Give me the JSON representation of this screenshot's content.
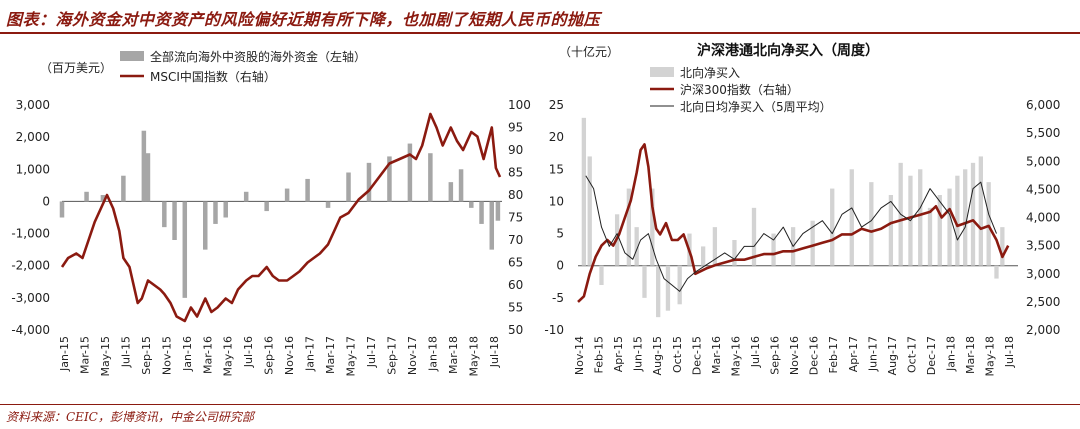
{
  "header": {
    "title": "图表：海外资金对中资资产的风险偏好近期有所下降，也加剧了短期人民币的抛压"
  },
  "footer": {
    "source": "资料来源：CEIC，彭博资讯，中金公司研究部"
  },
  "chart_data": [
    {
      "type": "bar+line",
      "title": "",
      "unit_label": "（百万美元）",
      "legend": [
        "全部流向海外中资股的海外资金（左轴）",
        "MSCI中国指数（右轴）"
      ],
      "x_tick_labels": [
        "Jan-15",
        "Mar-15",
        "May-15",
        "Jul-15",
        "Sep-15",
        "Nov-15",
        "Jan-16",
        "Mar-16",
        "May-16",
        "Jul-16",
        "Sep-16",
        "Nov-16",
        "Jan-17",
        "Mar-17",
        "May-17",
        "Jul-17",
        "Sep-17",
        "Nov-17",
        "Jan-18",
        "Mar-18",
        "May-18",
        "Jul-18"
      ],
      "y_left": {
        "ylim": [
          -4000,
          3000
        ],
        "ticks": [
          -4000,
          -3000,
          -2000,
          -1000,
          0,
          1000,
          2000,
          3000
        ],
        "tick_labels": [
          "-4,000",
          "-3,000",
          "-2,000",
          "-1,000",
          "0",
          "1,000",
          "2,000",
          "3,000"
        ]
      },
      "y_right": {
        "ylim": [
          50,
          100
        ],
        "ticks": [
          50,
          55,
          60,
          65,
          70,
          75,
          80,
          85,
          90,
          95,
          100
        ],
        "tick_labels": [
          "50",
          "55",
          "60",
          "65",
          "70",
          "75",
          "80",
          "85",
          "90",
          "95",
          "100"
        ]
      },
      "bar_series": {
        "name": "全部流向海外中资股的海外资金（左轴）",
        "color": "#a6a6a6",
        "keys": [
          0,
          1.2,
          2,
          3,
          4,
          4.2,
          5,
          5.5,
          6,
          7,
          7.5,
          8,
          9,
          10,
          11,
          12,
          13,
          14,
          15,
          16,
          17,
          18,
          19,
          19.5,
          20,
          20.5,
          21,
          21.3
        ],
        "values": [
          -500,
          300,
          200,
          800,
          2200,
          1500,
          -800,
          -1200,
          -3000,
          -1500,
          -700,
          -500,
          300,
          -300,
          400,
          700,
          -200,
          900,
          1200,
          1400,
          1800,
          1500,
          600,
          1000,
          -200,
          -700,
          -1500,
          -600
        ]
      },
      "line_series": {
        "name": "MSCI中国指数（右轴）",
        "color": "#8b1a10",
        "keys": [
          0,
          0.3,
          0.7,
          1.0,
          1.3,
          1.6,
          2.0,
          2.2,
          2.5,
          2.8,
          3.0,
          3.3,
          3.5,
          3.7,
          3.9,
          4.2,
          4.5,
          4.8,
          5.0,
          5.3,
          5.6,
          6.0,
          6.3,
          6.6,
          7.0,
          7.3,
          7.6,
          8.0,
          8.3,
          8.6,
          9.0,
          9.3,
          9.6,
          10.0,
          10.3,
          10.6,
          11.0,
          11.3,
          11.6,
          12.0,
          12.3,
          12.6,
          13.0,
          13.3,
          13.6,
          14.0,
          14.5,
          15.0,
          15.5,
          16.0,
          16.5,
          17.0,
          17.3,
          17.6,
          18.0,
          18.3,
          18.6,
          19.0,
          19.3,
          19.6,
          20.0,
          20.3,
          20.6,
          21.0,
          21.2,
          21.4
        ],
        "values": [
          64,
          66,
          67,
          66,
          70,
          74,
          78,
          80,
          77,
          72,
          66,
          64,
          60,
          56,
          57,
          61,
          60,
          59,
          58,
          56,
          53,
          52,
          55,
          53,
          57,
          54,
          55,
          57,
          56,
          59,
          61,
          62,
          62,
          64,
          62,
          61,
          61,
          62,
          63,
          65,
          66,
          67,
          69,
          72,
          75,
          76,
          79,
          81,
          84,
          87,
          88,
          89,
          88,
          91,
          98,
          95,
          91,
          95,
          92,
          90,
          94,
          93,
          88,
          95,
          86,
          84
        ]
      }
    },
    {
      "type": "bar+line",
      "title": "沪深港通北向净买入（周度）",
      "unit_label": "（十亿元）",
      "legend": [
        "北向净买入",
        "沪深300指数（右轴）",
        "北向日均净买入（5周平均）"
      ],
      "x_tick_labels": [
        "Nov-14",
        "Feb-15",
        "Apr-15",
        "Jun-15",
        "Aug-15",
        "Oct-15",
        "Dec-15",
        "Mar-16",
        "May-16",
        "Jul-16",
        "Sep-16",
        "Nov-16",
        "Dec-16",
        "Feb-17",
        "Apr-17",
        "Jun-17",
        "Aug-17",
        "Oct-17",
        "Dec-17",
        "Jan-18",
        "Mar-18",
        "May-18",
        "Jul-18"
      ],
      "y_left": {
        "ylim": [
          -10,
          25
        ],
        "ticks": [
          -10,
          -5,
          0,
          5,
          10,
          15,
          20,
          25
        ],
        "tick_labels": [
          "-10",
          "-5",
          "0",
          "5",
          "10",
          "15",
          "20",
          "25"
        ]
      },
      "y_right": {
        "ylim": [
          2000,
          6000
        ],
        "ticks": [
          2000,
          2500,
          3000,
          3500,
          4000,
          4500,
          5000,
          5500,
          6000
        ],
        "tick_labels": [
          "2,000",
          "2,500",
          "3,000",
          "3,500",
          "4,000",
          "4,500",
          "5,000",
          "5,500",
          "6,000"
        ]
      },
      "bar_series": {
        "name": "北向净买入",
        "color": "#d3d3d3",
        "keys": [
          0.3,
          0.6,
          1.2,
          2,
          2.6,
          3,
          3.4,
          3.8,
          4.1,
          4.6,
          5.2,
          5.7,
          6.4,
          7,
          8,
          9,
          10,
          11,
          12,
          13,
          14,
          15,
          16,
          16.5,
          17,
          17.5,
          18,
          18.5,
          19,
          19.4,
          19.8,
          20.2,
          20.6,
          21,
          21.4,
          21.7
        ],
        "values": [
          23,
          17,
          -3,
          8,
          12,
          6,
          -5,
          12,
          -8,
          -7,
          -6,
          5,
          3,
          6,
          4,
          9,
          5,
          6,
          7,
          12,
          15,
          13,
          11,
          16,
          14,
          15,
          9,
          11,
          12,
          14,
          15,
          16,
          17,
          13,
          -2,
          6
        ]
      },
      "line_series": [
        {
          "name": "沪深300指数（右轴）",
          "color": "#8b1a10",
          "keys": [
            0,
            0.3,
            0.6,
            0.9,
            1.2,
            1.5,
            1.8,
            2.1,
            2.4,
            2.7,
            3.0,
            3.2,
            3.4,
            3.6,
            3.8,
            4.0,
            4.2,
            4.5,
            4.8,
            5.1,
            5.4,
            5.8,
            6.0,
            6.3,
            6.6,
            7.0,
            7.5,
            8,
            8.5,
            9,
            9.5,
            10,
            10.5,
            11,
            11.5,
            12,
            12.5,
            13,
            13.5,
            14,
            14.5,
            15,
            15.5,
            16,
            16.5,
            17,
            17.5,
            18,
            18.3,
            18.6,
            19,
            19.4,
            19.8,
            20.2,
            20.6,
            21,
            21.4,
            21.7,
            22
          ],
          "values": [
            2500,
            2600,
            3000,
            3300,
            3500,
            3600,
            3500,
            3700,
            4000,
            4300,
            4800,
            5200,
            5300,
            4900,
            4200,
            3800,
            3700,
            3900,
            3600,
            3600,
            3700,
            3300,
            3000,
            3050,
            3100,
            3150,
            3200,
            3250,
            3250,
            3300,
            3350,
            3350,
            3400,
            3400,
            3450,
            3500,
            3550,
            3600,
            3700,
            3700,
            3800,
            3750,
            3800,
            3900,
            3950,
            4000,
            4050,
            4100,
            4200,
            4000,
            4150,
            3850,
            3900,
            3950,
            3800,
            3850,
            3600,
            3300,
            3500
          ]
        },
        {
          "name": "北向日均净买入（5周平均）",
          "color": "#222222",
          "keys": [
            0.4,
            0.8,
            1.2,
            1.6,
            2,
            2.4,
            2.8,
            3.2,
            3.6,
            4,
            4.4,
            4.8,
            5.2,
            5.6,
            6,
            6.5,
            7,
            7.5,
            8,
            8.5,
            9,
            9.5,
            10,
            10.5,
            11,
            11.5,
            12,
            12.5,
            13,
            13.5,
            14,
            14.5,
            15,
            15.5,
            16,
            16.5,
            17,
            17.5,
            18,
            18.5,
            19,
            19.4,
            19.8,
            20.2,
            20.6,
            21,
            21.4
          ],
          "values": [
            14,
            12,
            6,
            3,
            5,
            2,
            1,
            4,
            5,
            1,
            -2,
            -3,
            -4,
            -2,
            -1,
            0,
            1,
            2,
            1,
            3,
            3,
            5,
            4,
            6,
            3,
            5,
            6,
            7,
            5,
            8,
            9,
            6,
            7,
            9,
            10,
            8,
            7,
            9,
            12,
            10,
            8,
            4,
            6,
            12,
            13,
            8,
            5
          ]
        }
      ]
    }
  ]
}
